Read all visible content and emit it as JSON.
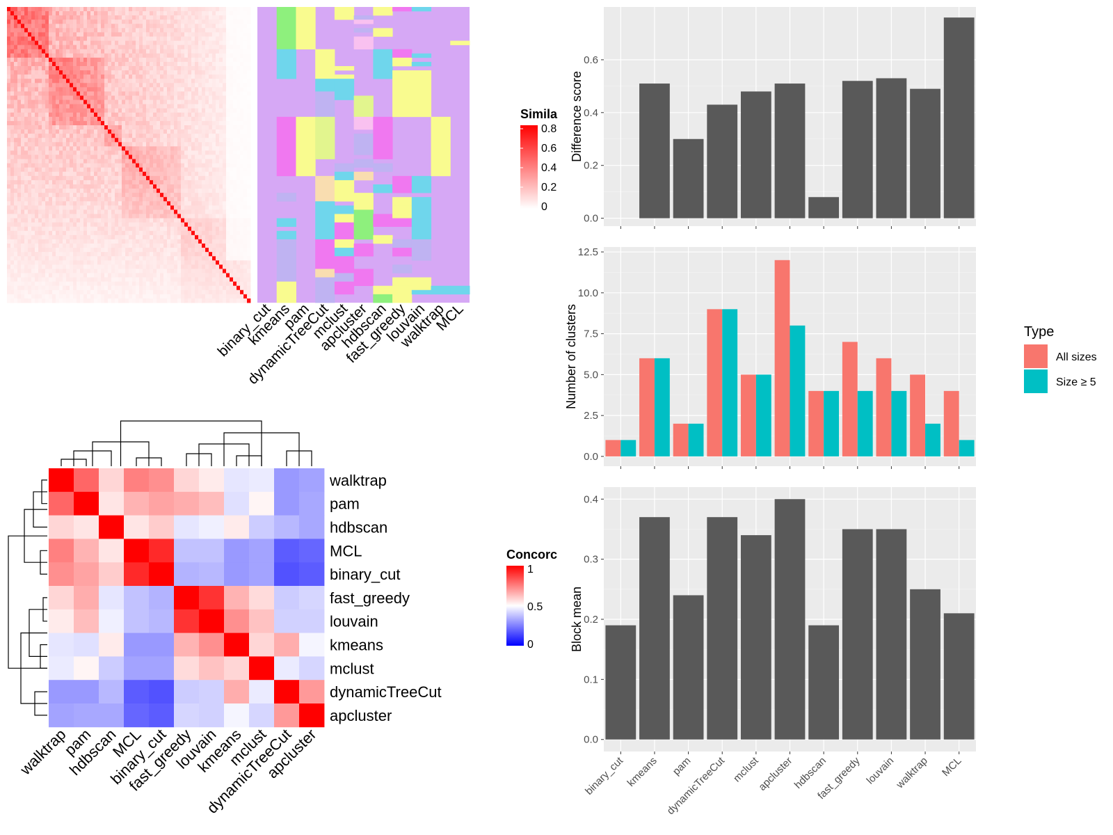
{
  "chart_data": [
    {
      "type": "heatmap",
      "legend_title": "Simila",
      "legend_ticks": [
        "0.8",
        "0.6",
        "0.4",
        "0.2",
        "0"
      ],
      "colors": {
        "low": "#ffffff",
        "high": "#ff0000"
      }
    },
    {
      "type": "heatmap",
      "columns": [
        "binary_cut",
        "kmeans",
        "pam",
        "dynamicTreeCut",
        "mclust",
        "apcluster",
        "hdbscan",
        "fast_greedy",
        "louvain",
        "walktrap",
        "MCL"
      ],
      "colors": {
        "background": "#d6a8f5",
        "yellow": "#f9fb8f",
        "cyan": "#6fd6ec",
        "green": "#8ef07d",
        "magenta": "#f078f0",
        "lavender": "#bfb3f2",
        "olive": "#e2f58e",
        "pink": "#f9c1f0",
        "peach": "#f9ddb0"
      }
    },
    {
      "type": "heatmap",
      "legend_title": "Concorc",
      "legend_ticks": [
        "1",
        "0.5",
        "0"
      ],
      "rows": [
        "walktrap",
        "pam",
        "hdbscan",
        "MCL",
        "binary_cut",
        "fast_greedy",
        "louvain",
        "kmeans",
        "mclust",
        "dynamicTreeCut",
        "apcluster"
      ],
      "columns": [
        "walktrap",
        "pam",
        "hdbscan",
        "MCL",
        "binary_cut",
        "fast_greedy",
        "louvain",
        "kmeans",
        "mclust",
        "dynamicTreeCut",
        "apcluster"
      ],
      "values": [
        [
          1.0,
          0.8,
          0.58,
          0.75,
          0.72,
          0.58,
          0.54,
          0.45,
          0.46,
          0.3,
          0.32
        ],
        [
          0.8,
          1.0,
          0.55,
          0.65,
          0.68,
          0.66,
          0.63,
          0.44,
          0.52,
          0.3,
          0.33
        ],
        [
          0.58,
          0.55,
          1.0,
          0.55,
          0.6,
          0.45,
          0.47,
          0.54,
          0.4,
          0.36,
          0.33
        ],
        [
          0.75,
          0.65,
          0.55,
          1.0,
          0.92,
          0.38,
          0.38,
          0.3,
          0.32,
          0.18,
          0.2
        ],
        [
          0.72,
          0.68,
          0.6,
          0.92,
          1.0,
          0.35,
          0.36,
          0.3,
          0.32,
          0.16,
          0.18
        ],
        [
          0.58,
          0.66,
          0.45,
          0.38,
          0.35,
          1.0,
          0.9,
          0.65,
          0.57,
          0.4,
          0.42
        ],
        [
          0.54,
          0.63,
          0.47,
          0.38,
          0.36,
          0.9,
          1.0,
          0.72,
          0.62,
          0.41,
          0.41
        ],
        [
          0.45,
          0.44,
          0.54,
          0.3,
          0.3,
          0.65,
          0.72,
          1.0,
          0.58,
          0.66,
          0.48
        ],
        [
          0.46,
          0.52,
          0.4,
          0.32,
          0.32,
          0.57,
          0.62,
          0.58,
          1.0,
          0.46,
          0.42
        ],
        [
          0.3,
          0.3,
          0.36,
          0.18,
          0.16,
          0.4,
          0.41,
          0.66,
          0.46,
          1.0,
          0.7
        ],
        [
          0.32,
          0.33,
          0.33,
          0.2,
          0.18,
          0.42,
          0.41,
          0.48,
          0.42,
          0.7,
          1.0
        ]
      ],
      "colors": {
        "low": "#0000ff",
        "mid": "#ffffff",
        "high": "#ff0000"
      }
    },
    {
      "type": "bar",
      "categories": [
        "binary_cut",
        "kmeans",
        "pam",
        "dynamicTreeCut",
        "mclust",
        "apcluster",
        "hdbscan",
        "fast_greedy",
        "louvain",
        "walktrap",
        "MCL"
      ],
      "values": [
        0,
        0.51,
        0.3,
        0.43,
        0.48,
        0.51,
        0.08,
        0.52,
        0.53,
        0.49,
        0.76
      ],
      "ylabel": "Difference score",
      "ylim": [
        -0.03,
        0.8
      ],
      "yticks": [
        "0.0",
        "0.2",
        "0.4",
        "0.6"
      ],
      "bar_color": "#595959"
    },
    {
      "type": "bar",
      "categories": [
        "binary_cut",
        "kmeans",
        "pam",
        "dynamicTreeCut",
        "mclust",
        "apcluster",
        "hdbscan",
        "fast_greedy",
        "louvain",
        "walktrap",
        "MCL"
      ],
      "series": [
        {
          "name": "All sizes",
          "values": [
            1,
            6,
            2,
            9,
            5,
            12,
            4,
            7,
            6,
            5,
            4
          ],
          "color": "#f8766d"
        },
        {
          "name": "Size ≥ 5",
          "values": [
            1,
            6,
            2,
            9,
            5,
            8,
            4,
            4,
            4,
            2,
            1
          ],
          "color": "#00bfc4"
        }
      ],
      "ylabel": "Number of clusters",
      "ylim": [
        -0.6,
        12.8
      ],
      "yticks": [
        "0.0",
        "2.5",
        "5.0",
        "7.5",
        "10.0",
        "12.5"
      ],
      "legend_title": "Type",
      "legend_position": "right"
    },
    {
      "type": "bar",
      "categories": [
        "binary_cut",
        "kmeans",
        "pam",
        "dynamicTreeCut",
        "mclust",
        "apcluster",
        "hdbscan",
        "fast_greedy",
        "louvain",
        "walktrap",
        "MCL"
      ],
      "values": [
        0.19,
        0.37,
        0.24,
        0.37,
        0.34,
        0.4,
        0.19,
        0.35,
        0.35,
        0.25,
        0.21
      ],
      "ylabel": "Block mean",
      "ylim": [
        -0.02,
        0.42
      ],
      "yticks": [
        "0.0",
        "0.1",
        "0.2",
        "0.3",
        "0.4"
      ],
      "bar_color": "#595959"
    }
  ]
}
